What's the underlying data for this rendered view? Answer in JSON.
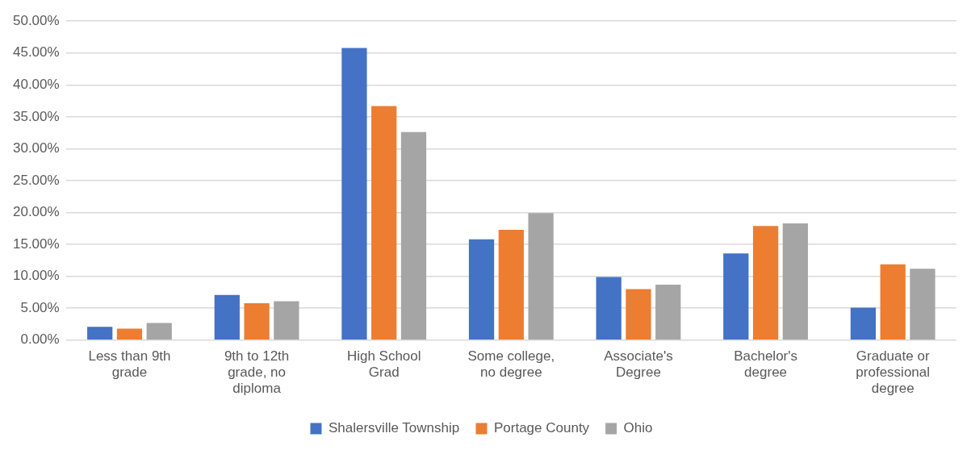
{
  "chart_data": {
    "type": "bar",
    "categories": [
      "Less than 9th grade",
      "9th to 12th grade, no diploma",
      "High School Grad",
      "Some college, no degree",
      "Associate's Degree",
      "Bachelor's degree",
      "Graduate or professional degree"
    ],
    "series": [
      {
        "name": "Shalersville Township",
        "color": "#4472c4",
        "values": [
          2.1,
          7.1,
          45.8,
          15.8,
          9.9,
          13.6,
          5.1
        ]
      },
      {
        "name": "Portage County",
        "color": "#ed7d31",
        "values": [
          1.8,
          5.8,
          36.7,
          17.3,
          8.0,
          17.9,
          11.9
        ]
      },
      {
        "name": "Ohio",
        "color": "#a5a5a5",
        "values": [
          2.7,
          6.1,
          32.6,
          19.9,
          8.7,
          18.3,
          11.2
        ]
      }
    ],
    "ylim": [
      0,
      50
    ],
    "yticks": [
      {
        "value": 0,
        "label": "0.00%"
      },
      {
        "value": 5,
        "label": "5.00%"
      },
      {
        "value": 10,
        "label": "10.00%"
      },
      {
        "value": 15,
        "label": "15.00%"
      },
      {
        "value": 20,
        "label": "20.00%"
      },
      {
        "value": 25,
        "label": "25.00%"
      },
      {
        "value": 30,
        "label": "30.00%"
      },
      {
        "value": 35,
        "label": "35.00%"
      },
      {
        "value": 40,
        "label": "40.00%"
      },
      {
        "value": 45,
        "label": "45.00%"
      },
      {
        "value": 50,
        "label": "50.00%"
      }
    ],
    "grid": "y",
    "legend": "bottom"
  }
}
